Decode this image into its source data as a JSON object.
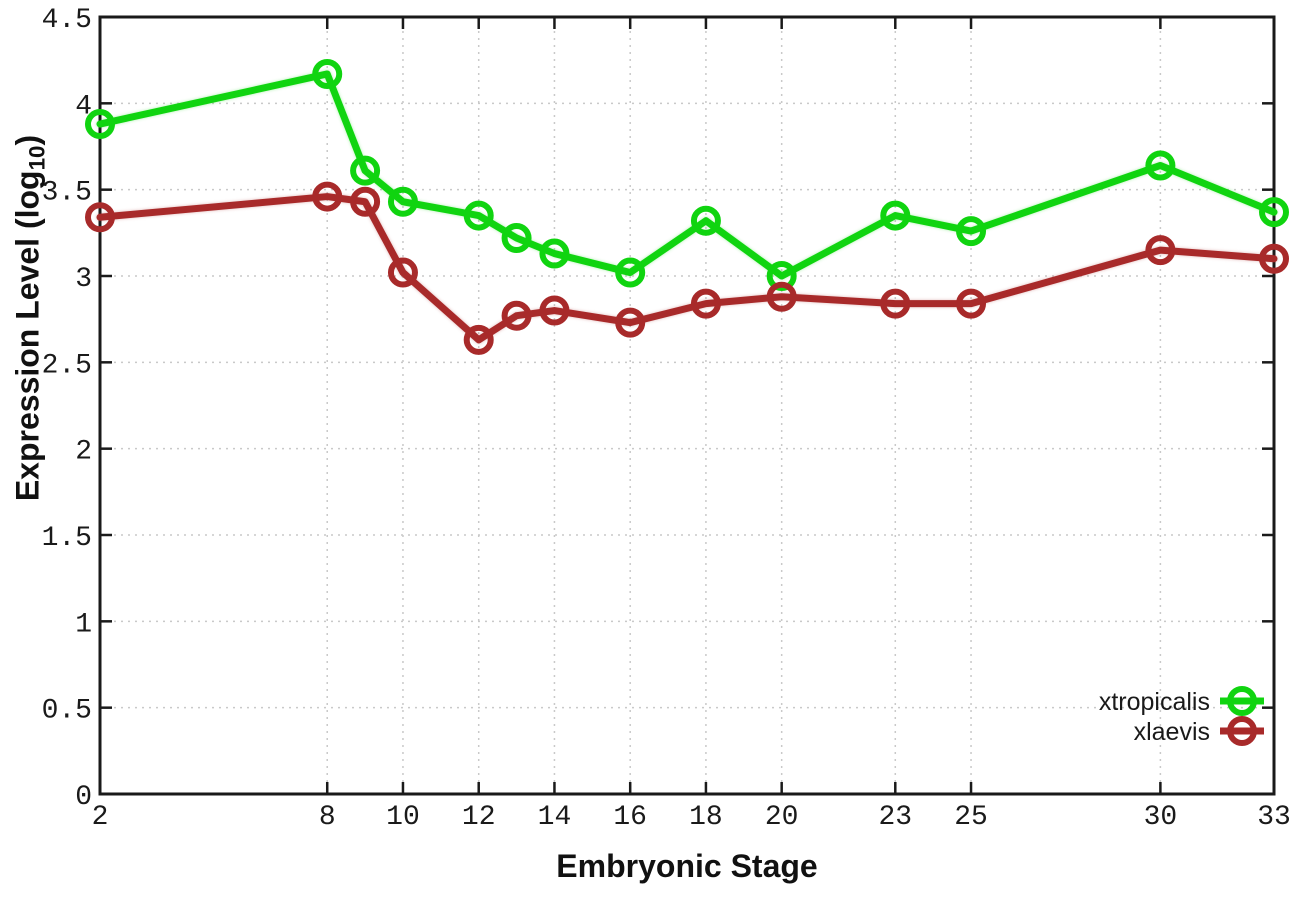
{
  "chart_data": {
    "type": "line",
    "title": "",
    "xlabel": "Embryonic Stage",
    "ylabel": {
      "pre": "Expression Level (log",
      "sub": "10",
      "post": ")"
    },
    "xlim": [
      2,
      33
    ],
    "ylim": [
      0,
      4.5
    ],
    "x_ticks": [
      2,
      8,
      10,
      12,
      14,
      16,
      18,
      20,
      23,
      25,
      30,
      33
    ],
    "y_ticks": [
      0,
      0.5,
      1,
      1.5,
      2,
      2.5,
      3,
      3.5,
      4,
      4.5
    ],
    "grid": "dotted",
    "legend_position": "inside-bottom-right",
    "x": [
      2,
      8,
      9,
      10,
      12,
      13,
      14,
      16,
      18,
      20,
      23,
      25,
      30,
      33
    ],
    "series": [
      {
        "name": "xtropicalis",
        "color": "#10d410",
        "marker": "open-circle",
        "values": [
          3.88,
          4.17,
          3.61,
          3.43,
          3.35,
          3.22,
          3.13,
          3.02,
          3.32,
          3.0,
          3.35,
          3.26,
          3.64,
          3.37
        ]
      },
      {
        "name": "xlaevis",
        "color": "#a82a2a",
        "marker": "open-circle",
        "values": [
          3.34,
          3.46,
          3.43,
          3.02,
          2.63,
          2.77,
          2.8,
          2.73,
          2.84,
          2.88,
          2.84,
          2.84,
          3.15,
          3.1
        ]
      }
    ],
    "colors": {
      "grid": "#c9c9c9",
      "axis": "#1a1a1a",
      "text": "#1a1a1a",
      "background": "#ffffff"
    }
  }
}
